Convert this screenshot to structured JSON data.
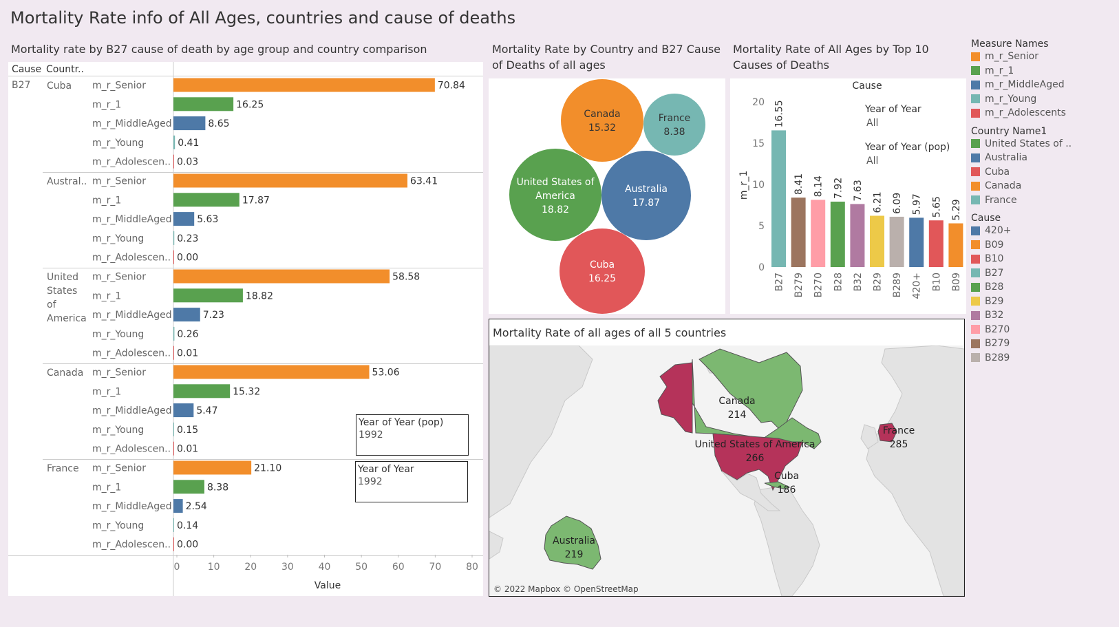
{
  "title": "Mortality Rate info of All Ages, countries and cause of deaths",
  "colors": {
    "m_r_Senior": "#f28e2b",
    "m_r_1": "#59a14f",
    "m_r_MiddleAged": "#4e79a7",
    "m_r_Young": "#76b7b2",
    "m_r_Adolescents": "#e15759",
    "United States of America": "#59a14f",
    "Australia": "#4e79a7",
    "Cuba": "#e15759",
    "Canada": "#f28e2b",
    "France": "#76b7b2",
    "map_land": "#7cb871",
    "map_highlight": "#b5335a"
  },
  "sheet1": {
    "title": "Mortality rate by B27 cause of death by age group and country comparison",
    "header_cause": "Cause",
    "header_country": "Countr..",
    "cause_value": "B27",
    "axis_title": "Value",
    "ticks": [
      "0",
      "10",
      "20",
      "30",
      "40",
      "50",
      "60",
      "70",
      "80"
    ],
    "measure_labels": [
      "m_r_Senior",
      "m_r_1",
      "m_r_MiddleAged",
      "m_r_Young",
      "m_r_Adolescen.."
    ],
    "filter_pop": {
      "label": "Year of Year (pop)",
      "value": "1992"
    },
    "filter_year": {
      "label": "Year of Year",
      "value": "1992"
    }
  },
  "chart_data": [
    {
      "type": "bar",
      "title": "Mortality rate by B27 cause of death by age group and country comparison",
      "xlabel": "Value",
      "xlim": [
        0,
        80
      ],
      "measures": [
        "m_r_Senior",
        "m_r_1",
        "m_r_MiddleAged",
        "m_r_Young",
        "m_r_Adolescents"
      ],
      "groups": [
        {
          "country": "Cuba",
          "label": "Cuba",
          "values": [
            70.84,
            16.25,
            8.65,
            0.41,
            0.03
          ],
          "labels": [
            "70.84",
            "16.25",
            "8.65",
            "0.41",
            "0.03"
          ]
        },
        {
          "country": "Australia",
          "label": "Austral..",
          "values": [
            63.41,
            17.87,
            5.63,
            0.23,
            0.0
          ],
          "labels": [
            "63.41",
            "17.87",
            "5.63",
            "0.23",
            "0.00"
          ]
        },
        {
          "country": "United States of America",
          "label": "United States of America",
          "values": [
            58.58,
            18.82,
            7.23,
            0.26,
            0.01
          ],
          "labels": [
            "58.58",
            "18.82",
            "7.23",
            "0.26",
            "0.01"
          ]
        },
        {
          "country": "Canada",
          "label": "Canada",
          "values": [
            53.06,
            15.32,
            5.47,
            0.15,
            0.01
          ],
          "labels": [
            "53.06",
            "15.32",
            "5.47",
            "0.15",
            "0.01"
          ]
        },
        {
          "country": "France",
          "label": "France",
          "values": [
            21.1,
            8.38,
            2.54,
            0.14,
            0.0
          ],
          "labels": [
            "21.10",
            "8.38",
            "2.54",
            "0.14",
            "0.00"
          ]
        }
      ]
    },
    {
      "type": "bubble",
      "title": "Mortality Rate by Country and B27 Cause of Deaths of all ages",
      "points": [
        {
          "name": "Canada",
          "label": "Canada",
          "value": 15.32,
          "text": "15.32"
        },
        {
          "name": "France",
          "label": "France",
          "value": 8.38,
          "text": "8.38"
        },
        {
          "name": "United States of America",
          "label": "United States of America",
          "value": 18.82,
          "text": "18.82"
        },
        {
          "name": "Australia",
          "label": "Australia",
          "value": 17.87,
          "text": "17.87"
        },
        {
          "name": "Cuba",
          "label": "Cuba",
          "value": 16.25,
          "text": "16.25"
        }
      ]
    },
    {
      "type": "bar",
      "title": "Mortality Rate of All Ages by Top 10 Causes of Deaths",
      "header": "Cause",
      "ylabel": "m_r_1",
      "ylim": [
        0,
        20
      ],
      "yticks": [
        "0",
        "5",
        "10",
        "15",
        "20"
      ],
      "categories": [
        "B27",
        "B279",
        "B270",
        "B28",
        "B32",
        "B29",
        "B289",
        "420+",
        "B10",
        "B09"
      ],
      "values": [
        16.55,
        8.41,
        8.14,
        7.92,
        7.63,
        6.21,
        6.09,
        5.97,
        5.65,
        5.29
      ],
      "labels": [
        "16.55",
        "8.41",
        "8.14",
        "7.92",
        "7.63",
        "6.21",
        "6.09",
        "5.97",
        "5.65",
        "5.29"
      ],
      "colors": [
        "#76b7b2",
        "#9c755f",
        "#ff9da7",
        "#59a14f",
        "#b07aa1",
        "#edc948",
        "#bab0ac",
        "#4e79a7",
        "#e15759",
        "#f28e2b"
      ],
      "annotations": [
        {
          "label": "Year of Year",
          "value": "All"
        },
        {
          "label": "Year of Year (pop)",
          "value": "All"
        }
      ]
    },
    {
      "type": "map",
      "title": "Mortality Rate of all ages of all 5 countries",
      "points": [
        {
          "name": "Canada",
          "value": 214,
          "text": "214"
        },
        {
          "name": "United States of America",
          "value": 266,
          "text": "266"
        },
        {
          "name": "Cuba",
          "value": 186,
          "text": "186"
        },
        {
          "name": "France",
          "value": 285,
          "text": "285"
        },
        {
          "name": "Australia",
          "value": 219,
          "text": "219"
        }
      ],
      "attribution": "© 2022 Mapbox © OpenStreetMap"
    }
  ],
  "legends": {
    "measure_names": {
      "title": "Measure Names",
      "items": [
        "m_r_Senior",
        "m_r_1",
        "m_r_MiddleAged",
        "m_r_Young",
        "m_r_Adolescents"
      ],
      "colors": [
        "#f28e2b",
        "#59a14f",
        "#4e79a7",
        "#76b7b2",
        "#e15759"
      ]
    },
    "country": {
      "title": "Country Name1",
      "items": [
        "United States of ..",
        "Australia",
        "Cuba",
        "Canada",
        "France"
      ],
      "colors": [
        "#59a14f",
        "#4e79a7",
        "#e15759",
        "#f28e2b",
        "#76b7b2"
      ]
    },
    "cause": {
      "title": "Cause",
      "items": [
        "420+",
        "B09",
        "B10",
        "B27",
        "B28",
        "B29",
        "B32",
        "B270",
        "B279",
        "B289"
      ],
      "colors": [
        "#4e79a7",
        "#f28e2b",
        "#e15759",
        "#76b7b2",
        "#59a14f",
        "#edc948",
        "#b07aa1",
        "#ff9da7",
        "#9c755f",
        "#bab0ac"
      ]
    }
  }
}
